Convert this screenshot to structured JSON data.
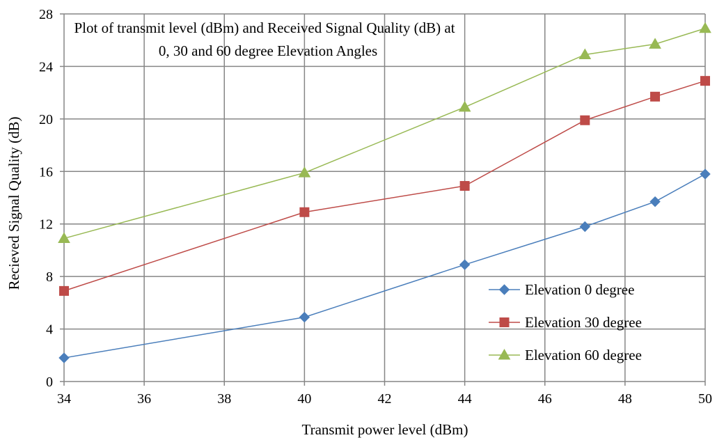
{
  "chart_data": {
    "type": "line",
    "title_lines": [
      "Plot of transmit level (dBm) and Received Signal Quality (dB) at",
      "0, 30 and 60 degree Elevation Angles"
    ],
    "xlabel": "Transmit power level (dBm)",
    "ylabel": "Recieved Signal Quality (dB)",
    "xlim": [
      34,
      50
    ],
    "ylim": [
      0,
      28
    ],
    "x_ticks": [
      "34",
      "36",
      "38",
      "40",
      "42",
      "44",
      "46",
      "48",
      "50"
    ],
    "y_ticks": [
      "0",
      "4",
      "8",
      "12",
      "16",
      "20",
      "24",
      "28"
    ],
    "grid": true,
    "legend_position": "bottom-right",
    "series": [
      {
        "name": "Elevation 0 degree",
        "color": "#4a7ebb",
        "marker": "diamond",
        "x": [
          34,
          40,
          44,
          47,
          48.75,
          50
        ],
        "y": [
          1.8,
          4.9,
          8.9,
          11.8,
          13.7,
          15.8
        ]
      },
      {
        "name": "Elevation 30 degree",
        "color": "#be4b48",
        "marker": "square",
        "x": [
          34,
          40,
          44,
          47,
          48.75,
          50
        ],
        "y": [
          6.9,
          12.9,
          14.9,
          19.9,
          21.7,
          22.9
        ]
      },
      {
        "name": "Elevation 60 degree",
        "color": "#98b954",
        "marker": "triangle",
        "x": [
          34,
          40,
          44,
          47,
          48.75,
          50
        ],
        "y": [
          10.9,
          15.9,
          20.9,
          24.9,
          25.7,
          26.9
        ]
      }
    ]
  }
}
